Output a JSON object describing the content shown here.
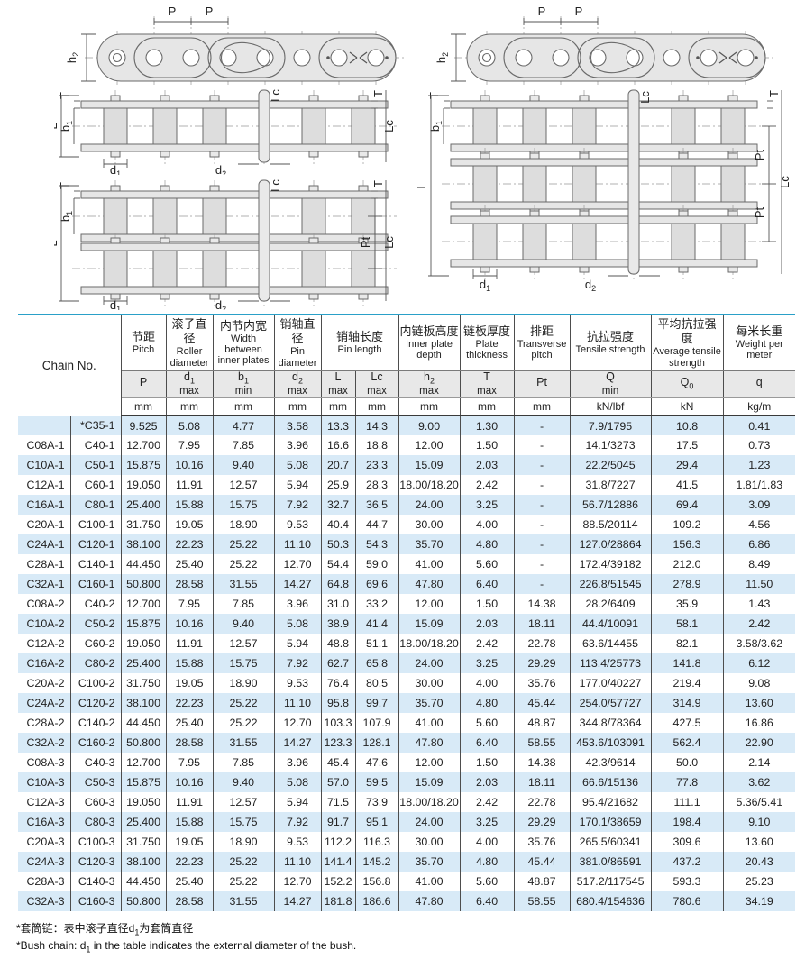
{
  "colors": {
    "accent_teal": "#2aa0c8",
    "stripe_blue": "#d8eaf7",
    "header_gray": "#e8e8e8"
  },
  "diagram": {
    "dims": {
      "P": "P",
      "T": "T",
      "L": "L",
      "Lc": "Lc",
      "Pt": "Pt",
      "h2_sym": "h",
      "h2_sub": "2",
      "b1_sym": "b",
      "b1_sub": "1",
      "d1_sym": "d",
      "d1_sub": "1",
      "d2_sym": "d",
      "d2_sub": "2"
    }
  },
  "table": {
    "chain_no_label": "Chain No.",
    "groups": [
      {
        "zh": "节距",
        "en": "Pitch"
      },
      {
        "zh": "滚子直径",
        "en": "Roller diameter"
      },
      {
        "zh": "内节内宽",
        "en": "Width between inner plates"
      },
      {
        "zh": "销轴直径",
        "en": "Pin diameter"
      },
      {
        "zh": "销轴长度",
        "en": "Pin length"
      },
      {
        "zh": "内链板高度",
        "en": "Inner plate depth"
      },
      {
        "zh": "链板厚度",
        "en": "Plate thickness"
      },
      {
        "zh": "排距",
        "en": "Transverse pitch"
      },
      {
        "zh": "抗拉强度",
        "en": "Tensile strength"
      },
      {
        "zh": "平均抗拉强度",
        "en": "Average tensile strength"
      },
      {
        "zh": "每米长重",
        "en": "Weight per meter"
      }
    ],
    "symbols": [
      {
        "sym": "P",
        "sub": "",
        "limit": ""
      },
      {
        "sym": "d",
        "sub": "1",
        "limit": "max"
      },
      {
        "sym": "b",
        "sub": "1",
        "limit": "min"
      },
      {
        "sym": "d",
        "sub": "2",
        "limit": "max"
      },
      {
        "sym": "L",
        "sub": "",
        "limit": "max"
      },
      {
        "sym": "Lc",
        "sub": "",
        "limit": "max"
      },
      {
        "sym": "h",
        "sub": "2",
        "limit": "max"
      },
      {
        "sym": "T",
        "sub": "",
        "limit": "max"
      },
      {
        "sym": "Pt",
        "sub": "",
        "limit": ""
      },
      {
        "sym": "Q",
        "sub": "",
        "limit": "min"
      },
      {
        "sym": "Q",
        "sub": "0",
        "limit": ""
      },
      {
        "sym": "q",
        "sub": "",
        "limit": ""
      }
    ],
    "units": [
      "mm",
      "mm",
      "mm",
      "mm",
      "mm",
      "mm",
      "mm",
      "mm",
      "mm",
      "kN/lbf",
      "kN",
      "kg/m"
    ],
    "rows": [
      [
        "",
        "*C35-1",
        "9.525",
        "5.08",
        "4.77",
        "3.58",
        "13.3",
        "14.3",
        "9.00",
        "1.30",
        "-",
        "7.9/1795",
        "10.8",
        "0.41"
      ],
      [
        "C08A-1",
        "C40-1",
        "12.700",
        "7.95",
        "7.85",
        "3.96",
        "16.6",
        "18.8",
        "12.00",
        "1.50",
        "-",
        "14.1/3273",
        "17.5",
        "0.73"
      ],
      [
        "C10A-1",
        "C50-1",
        "15.875",
        "10.16",
        "9.40",
        "5.08",
        "20.7",
        "23.3",
        "15.09",
        "2.03",
        "-",
        "22.2/5045",
        "29.4",
        "1.23"
      ],
      [
        "C12A-1",
        "C60-1",
        "19.050",
        "11.91",
        "12.57",
        "5.94",
        "25.9",
        "28.3",
        "18.00/18.20",
        "2.42",
        "-",
        "31.8/7227",
        "41.5",
        "1.81/1.83"
      ],
      [
        "C16A-1",
        "C80-1",
        "25.400",
        "15.88",
        "15.75",
        "7.92",
        "32.7",
        "36.5",
        "24.00",
        "3.25",
        "-",
        "56.7/12886",
        "69.4",
        "3.09"
      ],
      [
        "C20A-1",
        "C100-1",
        "31.750",
        "19.05",
        "18.90",
        "9.53",
        "40.4",
        "44.7",
        "30.00",
        "4.00",
        "-",
        "88.5/20114",
        "109.2",
        "4.56"
      ],
      [
        "C24A-1",
        "C120-1",
        "38.100",
        "22.23",
        "25.22",
        "11.10",
        "50.3",
        "54.3",
        "35.70",
        "4.80",
        "-",
        "127.0/28864",
        "156.3",
        "6.86"
      ],
      [
        "C28A-1",
        "C140-1",
        "44.450",
        "25.40",
        "25.22",
        "12.70",
        "54.4",
        "59.0",
        "41.00",
        "5.60",
        "-",
        "172.4/39182",
        "212.0",
        "8.49"
      ],
      [
        "C32A-1",
        "C160-1",
        "50.800",
        "28.58",
        "31.55",
        "14.27",
        "64.8",
        "69.6",
        "47.80",
        "6.40",
        "-",
        "226.8/51545",
        "278.9",
        "11.50"
      ],
      [
        "C08A-2",
        "C40-2",
        "12.700",
        "7.95",
        "7.85",
        "3.96",
        "31.0",
        "33.2",
        "12.00",
        "1.50",
        "14.38",
        "28.2/6409",
        "35.9",
        "1.43"
      ],
      [
        "C10A-2",
        "C50-2",
        "15.875",
        "10.16",
        "9.40",
        "5.08",
        "38.9",
        "41.4",
        "15.09",
        "2.03",
        "18.11",
        "44.4/10091",
        "58.1",
        "2.42"
      ],
      [
        "C12A-2",
        "C60-2",
        "19.050",
        "11.91",
        "12.57",
        "5.94",
        "48.8",
        "51.1",
        "18.00/18.20",
        "2.42",
        "22.78",
        "63.6/14455",
        "82.1",
        "3.58/3.62"
      ],
      [
        "C16A-2",
        "C80-2",
        "25.400",
        "15.88",
        "15.75",
        "7.92",
        "62.7",
        "65.8",
        "24.00",
        "3.25",
        "29.29",
        "113.4/25773",
        "141.8",
        "6.12"
      ],
      [
        "C20A-2",
        "C100-2",
        "31.750",
        "19.05",
        "18.90",
        "9.53",
        "76.4",
        "80.5",
        "30.00",
        "4.00",
        "35.76",
        "177.0/40227",
        "219.4",
        "9.08"
      ],
      [
        "C24A-2",
        "C120-2",
        "38.100",
        "22.23",
        "25.22",
        "11.10",
        "95.8",
        "99.7",
        "35.70",
        "4.80",
        "45.44",
        "254.0/57727",
        "314.9",
        "13.60"
      ],
      [
        "C28A-2",
        "C140-2",
        "44.450",
        "25.40",
        "25.22",
        "12.70",
        "103.3",
        "107.9",
        "41.00",
        "5.60",
        "48.87",
        "344.8/78364",
        "427.5",
        "16.86"
      ],
      [
        "C32A-2",
        "C160-2",
        "50.800",
        "28.58",
        "31.55",
        "14.27",
        "123.3",
        "128.1",
        "47.80",
        "6.40",
        "58.55",
        "453.6/103091",
        "562.4",
        "22.90"
      ],
      [
        "C08A-3",
        "C40-3",
        "12.700",
        "7.95",
        "7.85",
        "3.96",
        "45.4",
        "47.6",
        "12.00",
        "1.50",
        "14.38",
        "42.3/9614",
        "50.0",
        "2.14"
      ],
      [
        "C10A-3",
        "C50-3",
        "15.875",
        "10.16",
        "9.40",
        "5.08",
        "57.0",
        "59.5",
        "15.09",
        "2.03",
        "18.11",
        "66.6/15136",
        "77.8",
        "3.62"
      ],
      [
        "C12A-3",
        "C60-3",
        "19.050",
        "11.91",
        "12.57",
        "5.94",
        "71.5",
        "73.9",
        "18.00/18.20",
        "2.42",
        "22.78",
        "95.4/21682",
        "111.1",
        "5.36/5.41"
      ],
      [
        "C16A-3",
        "C80-3",
        "25.400",
        "15.88",
        "15.75",
        "7.92",
        "91.7",
        "95.1",
        "24.00",
        "3.25",
        "29.29",
        "170.1/38659",
        "198.4",
        "9.10"
      ],
      [
        "C20A-3",
        "C100-3",
        "31.750",
        "19.05",
        "18.90",
        "9.53",
        "112.2",
        "116.3",
        "30.00",
        "4.00",
        "35.76",
        "265.5/60341",
        "309.6",
        "13.60"
      ],
      [
        "C24A-3",
        "C120-3",
        "38.100",
        "22.23",
        "25.22",
        "11.10",
        "141.4",
        "145.2",
        "35.70",
        "4.80",
        "45.44",
        "381.0/86591",
        "437.2",
        "20.43"
      ],
      [
        "C28A-3",
        "C140-3",
        "44.450",
        "25.40",
        "25.22",
        "12.70",
        "152.2",
        "156.8",
        "41.00",
        "5.60",
        "48.87",
        "517.2/117545",
        "593.3",
        "25.23"
      ],
      [
        "C32A-3",
        "C160-3",
        "50.800",
        "28.58",
        "31.55",
        "14.27",
        "181.8",
        "186.6",
        "47.80",
        "6.40",
        "58.55",
        "680.4/154636",
        "780.6",
        "34.19"
      ]
    ]
  },
  "footnotes": {
    "zh_pre": "*套筒链：表中滚子直径d",
    "zh_sub": "1",
    "zh_post": "为套筒直径",
    "en_pre": "*Bush chain: d",
    "en_sub": "1",
    "en_post": " in the table indicates the external diameter of the bush."
  }
}
